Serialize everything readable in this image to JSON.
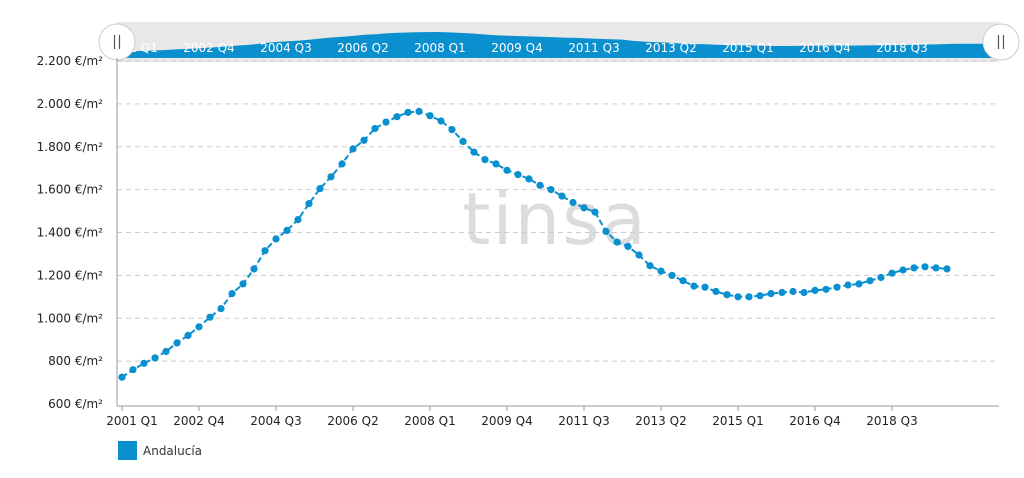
{
  "colors": {
    "series": "#0a8fcf",
    "navigator_bg": "#e8e8e8",
    "grid": "#cccccc",
    "watermark": "#dcdcdc"
  },
  "watermark": "tinsa",
  "navigator": {
    "labels": [
      "2001 Q1",
      "2002 Q4",
      "2004 Q3",
      "2006 Q2",
      "2008 Q1",
      "2009 Q4",
      "2011 Q3",
      "2013 Q2",
      "2015 Q1",
      "2016 Q4",
      "2018 Q3"
    ],
    "left_handle_icon": "grip-lines-icon",
    "right_handle_icon": "grip-lines-icon"
  },
  "chart_data": {
    "type": "line",
    "title": "",
    "xlabel": "",
    "ylabel": "",
    "ylim": [
      600,
      2200
    ],
    "y_ticks": [
      600,
      800,
      1000,
      1200,
      1400,
      1600,
      1800,
      2000,
      2200
    ],
    "y_tick_labels": [
      "600 €/m²",
      "800 €/m²",
      "1.000 €/m²",
      "1.200 €/m²",
      "1.400 €/m²",
      "1.600 €/m²",
      "1.800 €/m²",
      "2.000 €/m²",
      "2.200 €/m²"
    ],
    "x_tick_labels": [
      "2001 Q1",
      "2002 Q4",
      "2004 Q3",
      "2006 Q2",
      "2008 Q1",
      "2009 Q4",
      "2011 Q3",
      "2013 Q2",
      "2015 Q1",
      "2016 Q4",
      "2018 Q3"
    ],
    "x_start": "2001 Q1",
    "x_end": "2019 Q4",
    "grid": true,
    "legend": "bottom-left",
    "series": [
      {
        "name": "Andalucía",
        "values": [
          725,
          760,
          790,
          815,
          845,
          885,
          920,
          960,
          1005,
          1045,
          1115,
          1160,
          1230,
          1315,
          1370,
          1410,
          1460,
          1535,
          1605,
          1660,
          1720,
          1790,
          1830,
          1885,
          1915,
          1940,
          1960,
          1965,
          1945,
          1920,
          1880,
          1825,
          1775,
          1740,
          1720,
          1690,
          1670,
          1650,
          1620,
          1600,
          1570,
          1540,
          1515,
          1495,
          1405,
          1355,
          1335,
          1295,
          1245,
          1220,
          1200,
          1175,
          1150,
          1145,
          1125,
          1110,
          1100,
          1100,
          1105,
          1115,
          1120,
          1125,
          1120,
          1130,
          1135,
          1145,
          1155,
          1160,
          1175,
          1190,
          1210,
          1225,
          1235,
          1240,
          1235,
          1230
        ]
      }
    ]
  }
}
